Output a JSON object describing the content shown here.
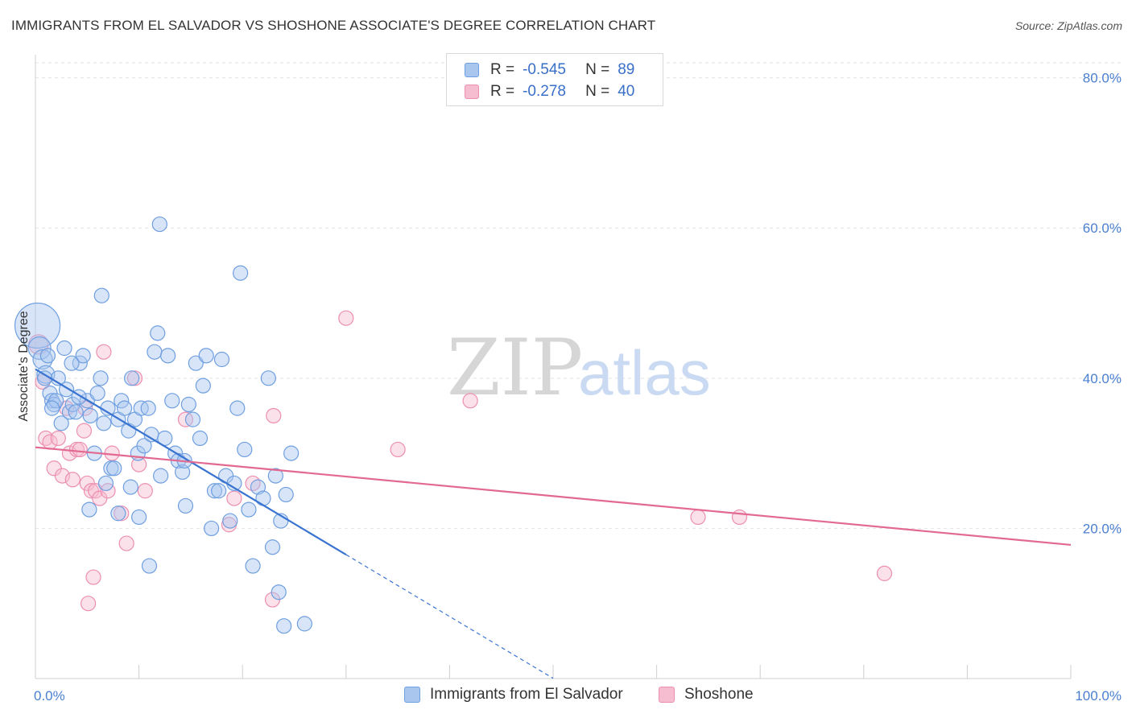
{
  "header": {
    "title": "IMMIGRANTS FROM EL SALVADOR VS SHOSHONE ASSOCIATE'S DEGREE CORRELATION CHART",
    "source": "Source: ZipAtlas.com"
  },
  "watermark": {
    "part1": "ZIP",
    "part2": "atlas"
  },
  "colors": {
    "blue_fill": "#a9c6ef",
    "blue_stroke": "#6f9fe0",
    "blue_line": "#3a74d1",
    "pink_fill": "#f6bcd0",
    "pink_stroke": "#ec8fb0",
    "pink_line": "#e2698f",
    "grid": "#e3e3e3",
    "label_blue": "#4a7fd0"
  },
  "legend": {
    "rows": [
      {
        "r_label": "R =",
        "r_value": "-0.545",
        "n_label": "N =",
        "n_value": "89"
      },
      {
        "r_label": "R =",
        "r_value": "-0.278",
        "n_label": "N =",
        "n_value": "40"
      }
    ]
  },
  "chart_data": {
    "type": "scatter",
    "title": "IMMIGRANTS FROM EL SALVADOR VS SHOSHONE ASSOCIATE'S DEGREE CORRELATION CHART",
    "xlabel": "",
    "ylabel": "Associate's Degree",
    "xlim": [
      0,
      100
    ],
    "ylim": [
      0,
      82
    ],
    "x_tick_labels": [
      "0.0%",
      "100.0%"
    ],
    "y_ticks": [
      20,
      40,
      60,
      80
    ],
    "y_tick_labels": [
      "20.0%",
      "40.0%",
      "60.0%",
      "80.0%"
    ],
    "grid": true,
    "legend_position": "top-center",
    "series": [
      {
        "name": "Immigrants from El Salvador",
        "color": "#a9c6ef",
        "r": -0.545,
        "n": 89,
        "trend": {
          "x0": 0,
          "y0": 41.2,
          "x1": 30,
          "y1": 16.5,
          "dashed_to_x": 50
        },
        "points": [
          [
            0.2,
            47,
            28
          ],
          [
            0.4,
            44,
            14
          ],
          [
            0.7,
            42.5,
            12
          ],
          [
            1.0,
            40.5,
            11
          ],
          [
            1.2,
            43,
            9
          ],
          [
            1.4,
            38,
            9
          ],
          [
            1.6,
            37,
            9
          ],
          [
            1.8,
            36.5,
            9
          ],
          [
            2.2,
            40,
            9
          ],
          [
            2.5,
            34,
            9
          ],
          [
            2.8,
            44,
            9
          ],
          [
            3.0,
            38.5,
            9
          ],
          [
            3.3,
            35.5,
            9
          ],
          [
            3.6,
            36.5,
            9
          ],
          [
            3.9,
            35.5,
            9
          ],
          [
            4.3,
            42,
            9
          ],
          [
            4.6,
            43,
            9
          ],
          [
            5.0,
            37,
            9
          ],
          [
            5.3,
            35,
            9
          ],
          [
            5.7,
            30,
            9
          ],
          [
            6.0,
            38,
            9
          ],
          [
            6.3,
            40,
            9
          ],
          [
            6.6,
            34,
            9
          ],
          [
            7.0,
            36,
            9
          ],
          [
            7.3,
            28,
            9
          ],
          [
            7.6,
            28,
            9
          ],
          [
            8.0,
            34.5,
            9
          ],
          [
            8.3,
            37,
            9
          ],
          [
            8.6,
            36,
            9
          ],
          [
            9.0,
            33,
            9
          ],
          [
            9.3,
            40,
            9
          ],
          [
            9.6,
            34.5,
            9
          ],
          [
            9.9,
            30,
            9
          ],
          [
            10.2,
            36,
            9
          ],
          [
            10.5,
            31,
            9
          ],
          [
            10.9,
            36,
            9
          ],
          [
            11.2,
            32.5,
            9
          ],
          [
            11.5,
            43.5,
            9
          ],
          [
            11.8,
            46,
            9
          ],
          [
            12.1,
            27,
            9
          ],
          [
            12.5,
            32,
            9
          ],
          [
            12.8,
            43,
            9
          ],
          [
            13.2,
            37,
            9
          ],
          [
            13.5,
            30,
            9
          ],
          [
            13.8,
            29,
            9
          ],
          [
            14.2,
            27.5,
            9
          ],
          [
            14.5,
            23,
            9
          ],
          [
            14.8,
            36.5,
            9
          ],
          [
            15.2,
            34.5,
            9
          ],
          [
            15.5,
            42,
            9
          ],
          [
            15.9,
            32,
            9
          ],
          [
            16.2,
            39,
            9
          ],
          [
            16.5,
            43,
            9
          ],
          [
            17.0,
            20,
            9
          ],
          [
            17.3,
            25,
            9
          ],
          [
            17.7,
            25,
            9
          ],
          [
            18.0,
            42.5,
            9
          ],
          [
            18.4,
            27,
            9
          ],
          [
            18.8,
            21,
            9
          ],
          [
            19.2,
            26,
            9
          ],
          [
            19.5,
            36,
            9
          ],
          [
            19.8,
            54,
            9
          ],
          [
            20.2,
            30.5,
            9
          ],
          [
            20.6,
            22.5,
            9
          ],
          [
            21.0,
            15,
            9
          ],
          [
            21.5,
            25.5,
            9
          ],
          [
            22.0,
            24,
            9
          ],
          [
            22.5,
            40,
            9
          ],
          [
            22.9,
            17.5,
            9
          ],
          [
            23.2,
            27,
            9
          ],
          [
            23.7,
            21,
            9
          ],
          [
            24.2,
            24.5,
            9
          ],
          [
            24.7,
            30,
            9
          ],
          [
            14.4,
            29,
            9
          ],
          [
            8.0,
            22,
            9
          ],
          [
            6.8,
            26,
            9
          ],
          [
            5.2,
            22.5,
            9
          ],
          [
            10.0,
            21.5,
            9
          ],
          [
            9.2,
            25.5,
            9
          ],
          [
            12.0,
            60.5,
            9
          ],
          [
            6.4,
            51,
            9
          ],
          [
            11.0,
            15,
            9
          ],
          [
            3.5,
            42,
            9
          ],
          [
            2.0,
            37,
            9
          ],
          [
            4.2,
            37.5,
            9
          ],
          [
            0.9,
            40,
            9
          ],
          [
            1.6,
            36,
            9
          ],
          [
            23.5,
            11.5,
            9
          ],
          [
            24.0,
            7,
            9
          ],
          [
            26.0,
            7.3,
            9
          ]
        ]
      },
      {
        "name": "Shoshone",
        "color": "#f6bcd0",
        "r": -0.278,
        "n": 40,
        "trend": {
          "x0": 0,
          "y0": 30.8,
          "x1": 100,
          "y1": 17.8
        },
        "points": [
          [
            0.3,
            44.5,
            12
          ],
          [
            0.7,
            39.5,
            9
          ],
          [
            1.0,
            32,
            9
          ],
          [
            1.4,
            31.5,
            9
          ],
          [
            1.8,
            28,
            9
          ],
          [
            2.2,
            32,
            9
          ],
          [
            2.6,
            27,
            9
          ],
          [
            3.0,
            36,
            9
          ],
          [
            3.3,
            30,
            9
          ],
          [
            3.6,
            26.5,
            9
          ],
          [
            4.0,
            30.5,
            9
          ],
          [
            4.3,
            30.5,
            9
          ],
          [
            4.7,
            33,
            9
          ],
          [
            5.0,
            26,
            9
          ],
          [
            5.4,
            25,
            9
          ],
          [
            5.8,
            25,
            9
          ],
          [
            6.2,
            24,
            9
          ],
          [
            6.6,
            43.5,
            9
          ],
          [
            7.0,
            25,
            9
          ],
          [
            7.4,
            30,
            9
          ],
          [
            8.3,
            22,
            9
          ],
          [
            8.8,
            18,
            9
          ],
          [
            9.6,
            40,
            9
          ],
          [
            10.0,
            28.5,
            9
          ],
          [
            10.6,
            25,
            9
          ],
          [
            5.6,
            13.5,
            9
          ],
          [
            5.1,
            10,
            9
          ],
          [
            14.5,
            34.5,
            9
          ],
          [
            18.7,
            20.5,
            9
          ],
          [
            19.2,
            24,
            9
          ],
          [
            21.0,
            26,
            9
          ],
          [
            22.9,
            10.5,
            9
          ],
          [
            23.0,
            35,
            9
          ],
          [
            30.0,
            48,
            9
          ],
          [
            35.0,
            30.5,
            9
          ],
          [
            42.0,
            37,
            9
          ],
          [
            64.0,
            21.5,
            9
          ],
          [
            68.0,
            21.5,
            9
          ],
          [
            82.0,
            14,
            9
          ],
          [
            4.8,
            36,
            9
          ]
        ]
      }
    ]
  }
}
